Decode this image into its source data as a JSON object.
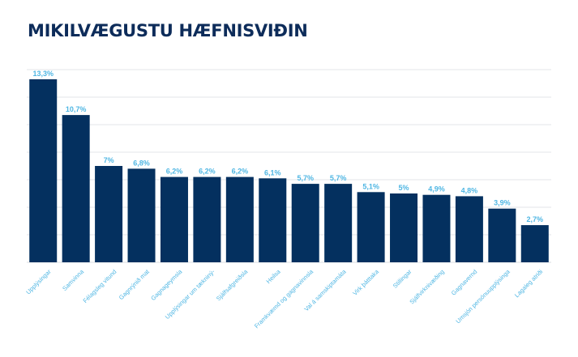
{
  "chart_data": {
    "type": "bar",
    "title": "MIKILVÆGUSTU HÆFNISVIÐIN",
    "categories": [
      "Upplýsingar",
      "Samvinna",
      "Félagsleg vitund",
      "Gagnrýnið mat",
      "Gagnageymsla",
      "Upplýsingar um tækniný-",
      "Sjálfsafgreiðsla",
      "Heilsa",
      "Framkvæmd og gagnavinnsla",
      "Val á samskiptamáta",
      "Virk þátttaka",
      "Stillingar",
      "Sjálfvirknivæðing",
      "Gagnavernd",
      "Umsjón persónuupplýsinga",
      "Lagaleg atriði"
    ],
    "values": [
      13.3,
      10.7,
      7,
      6.8,
      6.2,
      6.2,
      6.2,
      6.1,
      5.7,
      5.7,
      5.1,
      5,
      4.9,
      4.8,
      3.9,
      2.7
    ],
    "value_labels": [
      "13,3%",
      "10,7%",
      "7%",
      "6,8%",
      "6,2%",
      "6,2%",
      "6,2%",
      "6,1%",
      "5,7%",
      "5,7%",
      "5,1%",
      "5%",
      "4,9%",
      "4,8%",
      "3,9%",
      "2,7%"
    ],
    "xlabel": "",
    "ylabel": "",
    "ylim": [
      0,
      14
    ],
    "grid": true,
    "legend": "none",
    "colors": {
      "bar": "#04305f",
      "labels": "#4fb6e3",
      "title": "#0d2c5a"
    }
  }
}
